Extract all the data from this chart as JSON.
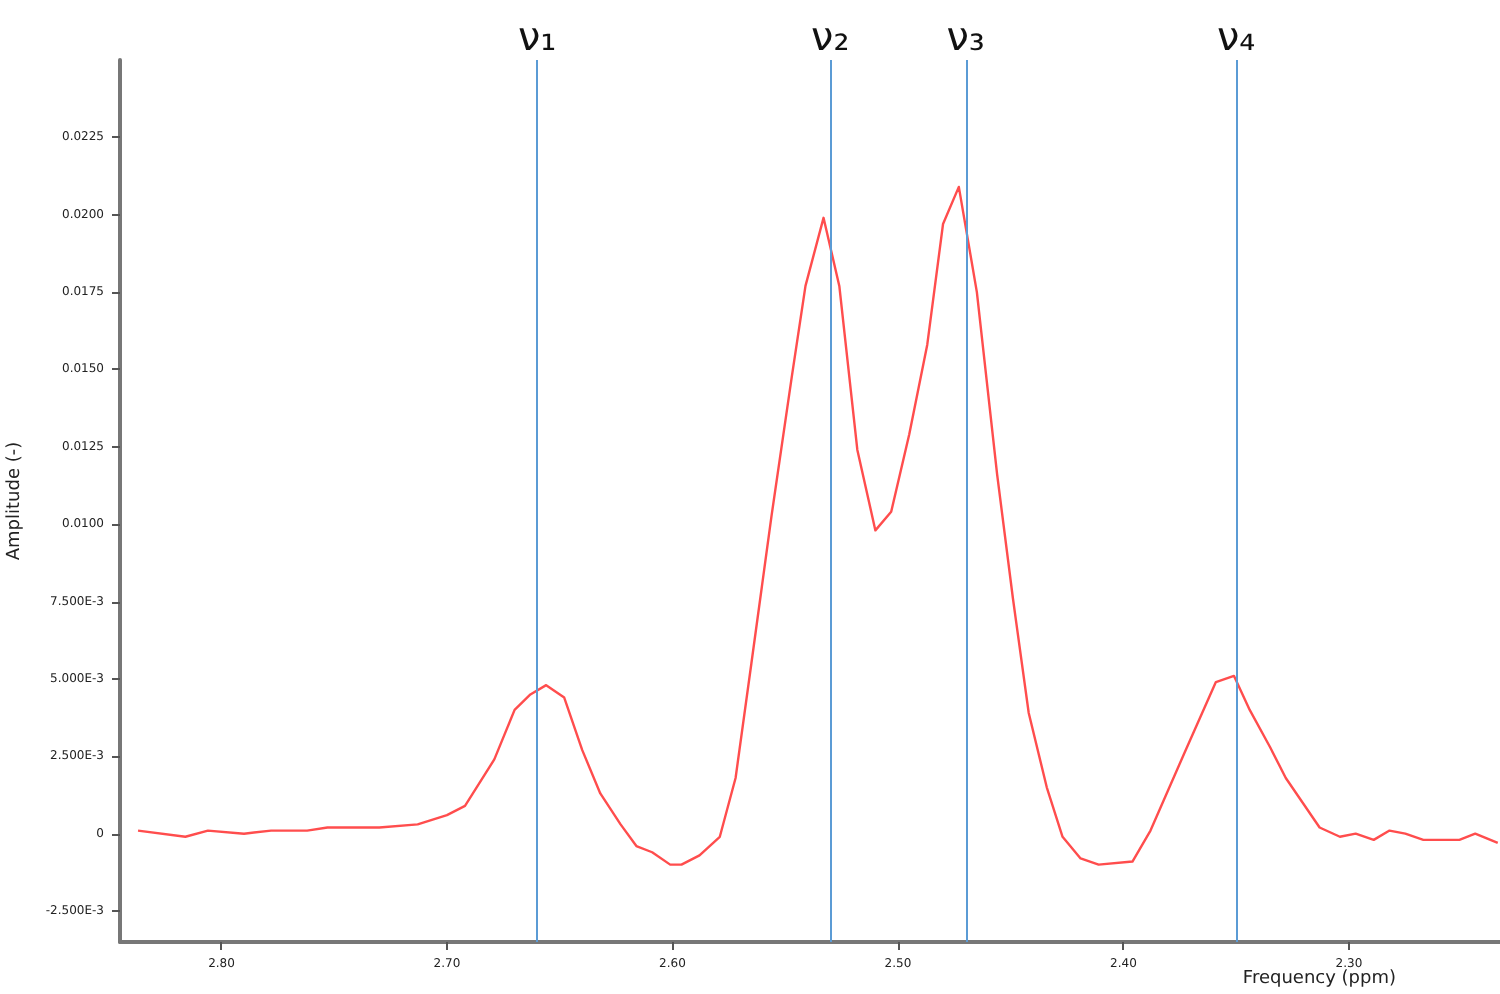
{
  "chart_data": {
    "type": "line",
    "xlabel": "Frequency (ppm)",
    "ylabel": "Amplitude (-)",
    "x": [
      2.837,
      2.816,
      2.806,
      2.79,
      2.778,
      2.762,
      2.753,
      2.738,
      2.73,
      2.713,
      2.7,
      2.692,
      2.679,
      2.67,
      2.663,
      2.656,
      2.648,
      2.64,
      2.632,
      2.623,
      2.616,
      2.609,
      2.601,
      2.596,
      2.588,
      2.579,
      2.572,
      2.565,
      2.556,
      2.547,
      2.541,
      2.533,
      2.526,
      2.518,
      2.51,
      2.503,
      2.495,
      2.487,
      2.48,
      2.473,
      2.465,
      2.456,
      2.449,
      2.442,
      2.434,
      2.427,
      2.419,
      2.411,
      2.396,
      2.388,
      2.373,
      2.359,
      2.351,
      2.344,
      2.335,
      2.328,
      2.313,
      2.304,
      2.297,
      2.289,
      2.282,
      2.275,
      2.267,
      2.251,
      2.244,
      2.234
    ],
    "series": [
      {
        "color": "#ff4d4d",
        "values": [
          0.0001,
          -0.0001,
          0.0001,
          0,
          0.0001,
          0.0001,
          0.0002,
          0.0002,
          0.0002,
          0.0003,
          0.0006,
          0.0009,
          0.0024,
          0.004,
          0.0045,
          0.0048,
          0.0044,
          0.0027,
          0.0013,
          0.0003,
          -0.0004,
          -0.0006,
          -0.001,
          -0.001,
          -0.0007,
          -0.0001,
          0.0018,
          0.0055,
          0.0103,
          0.0148,
          0.0177,
          0.0199,
          0.0177,
          0.0124,
          0.0098,
          0.0104,
          0.0129,
          0.0158,
          0.0197,
          0.0209,
          0.0175,
          0.0116,
          0.0076,
          0.0039,
          0.0015,
          -0.0001,
          -0.0008,
          -0.001,
          -0.0009,
          0.0001,
          0.0026,
          0.0049,
          0.0051,
          0.004,
          0.0028,
          0.0018,
          0.0002,
          -0.0001,
          0,
          -0.0002,
          0.0001,
          0,
          -0.0002,
          -0.0002,
          0,
          -0.0003
        ]
      }
    ],
    "xlim": [
      2.845,
      2.233
    ],
    "ylim": [
      -0.0035,
      0.025
    ],
    "xticks": [
      {
        "value": 2.8,
        "label": "2.80"
      },
      {
        "value": 2.7,
        "label": "2.70"
      },
      {
        "value": 2.6,
        "label": "2.60"
      },
      {
        "value": 2.5,
        "label": "2.50"
      },
      {
        "value": 2.4,
        "label": "2.40"
      },
      {
        "value": 2.3,
        "label": "2.30"
      }
    ],
    "yticks": [
      {
        "value": -0.0025,
        "label": "-2.500E-3"
      },
      0,
      {
        "value": 0.0025,
        "label": "2.500E-3"
      },
      {
        "value": 0.005,
        "label": "5.000E-3"
      },
      {
        "value": 0.0075,
        "label": "7.500E-3"
      },
      {
        "value": 0.01,
        "label": "0.0100"
      },
      {
        "value": 0.0125,
        "label": "0.0125"
      },
      {
        "value": 0.015,
        "label": "0.0150"
      },
      {
        "value": 0.0175,
        "label": "0.0175"
      },
      {
        "value": 0.02,
        "label": "0.0200"
      },
      {
        "value": 0.0225,
        "label": "0.0225"
      }
    ],
    "ref_lines": [
      {
        "axis": "x",
        "value": 2.66,
        "label": "ν₁",
        "color": "#5b9bd5"
      },
      {
        "axis": "x",
        "value": 2.53,
        "label": "ν₂",
        "color": "#5b9bd5"
      },
      {
        "axis": "x",
        "value": 2.47,
        "label": "ν₃",
        "color": "#5b9bd5"
      },
      {
        "axis": "x",
        "value": 2.35,
        "label": "ν₄",
        "color": "#5b9bd5"
      }
    ],
    "marker": "none",
    "grid": false
  }
}
